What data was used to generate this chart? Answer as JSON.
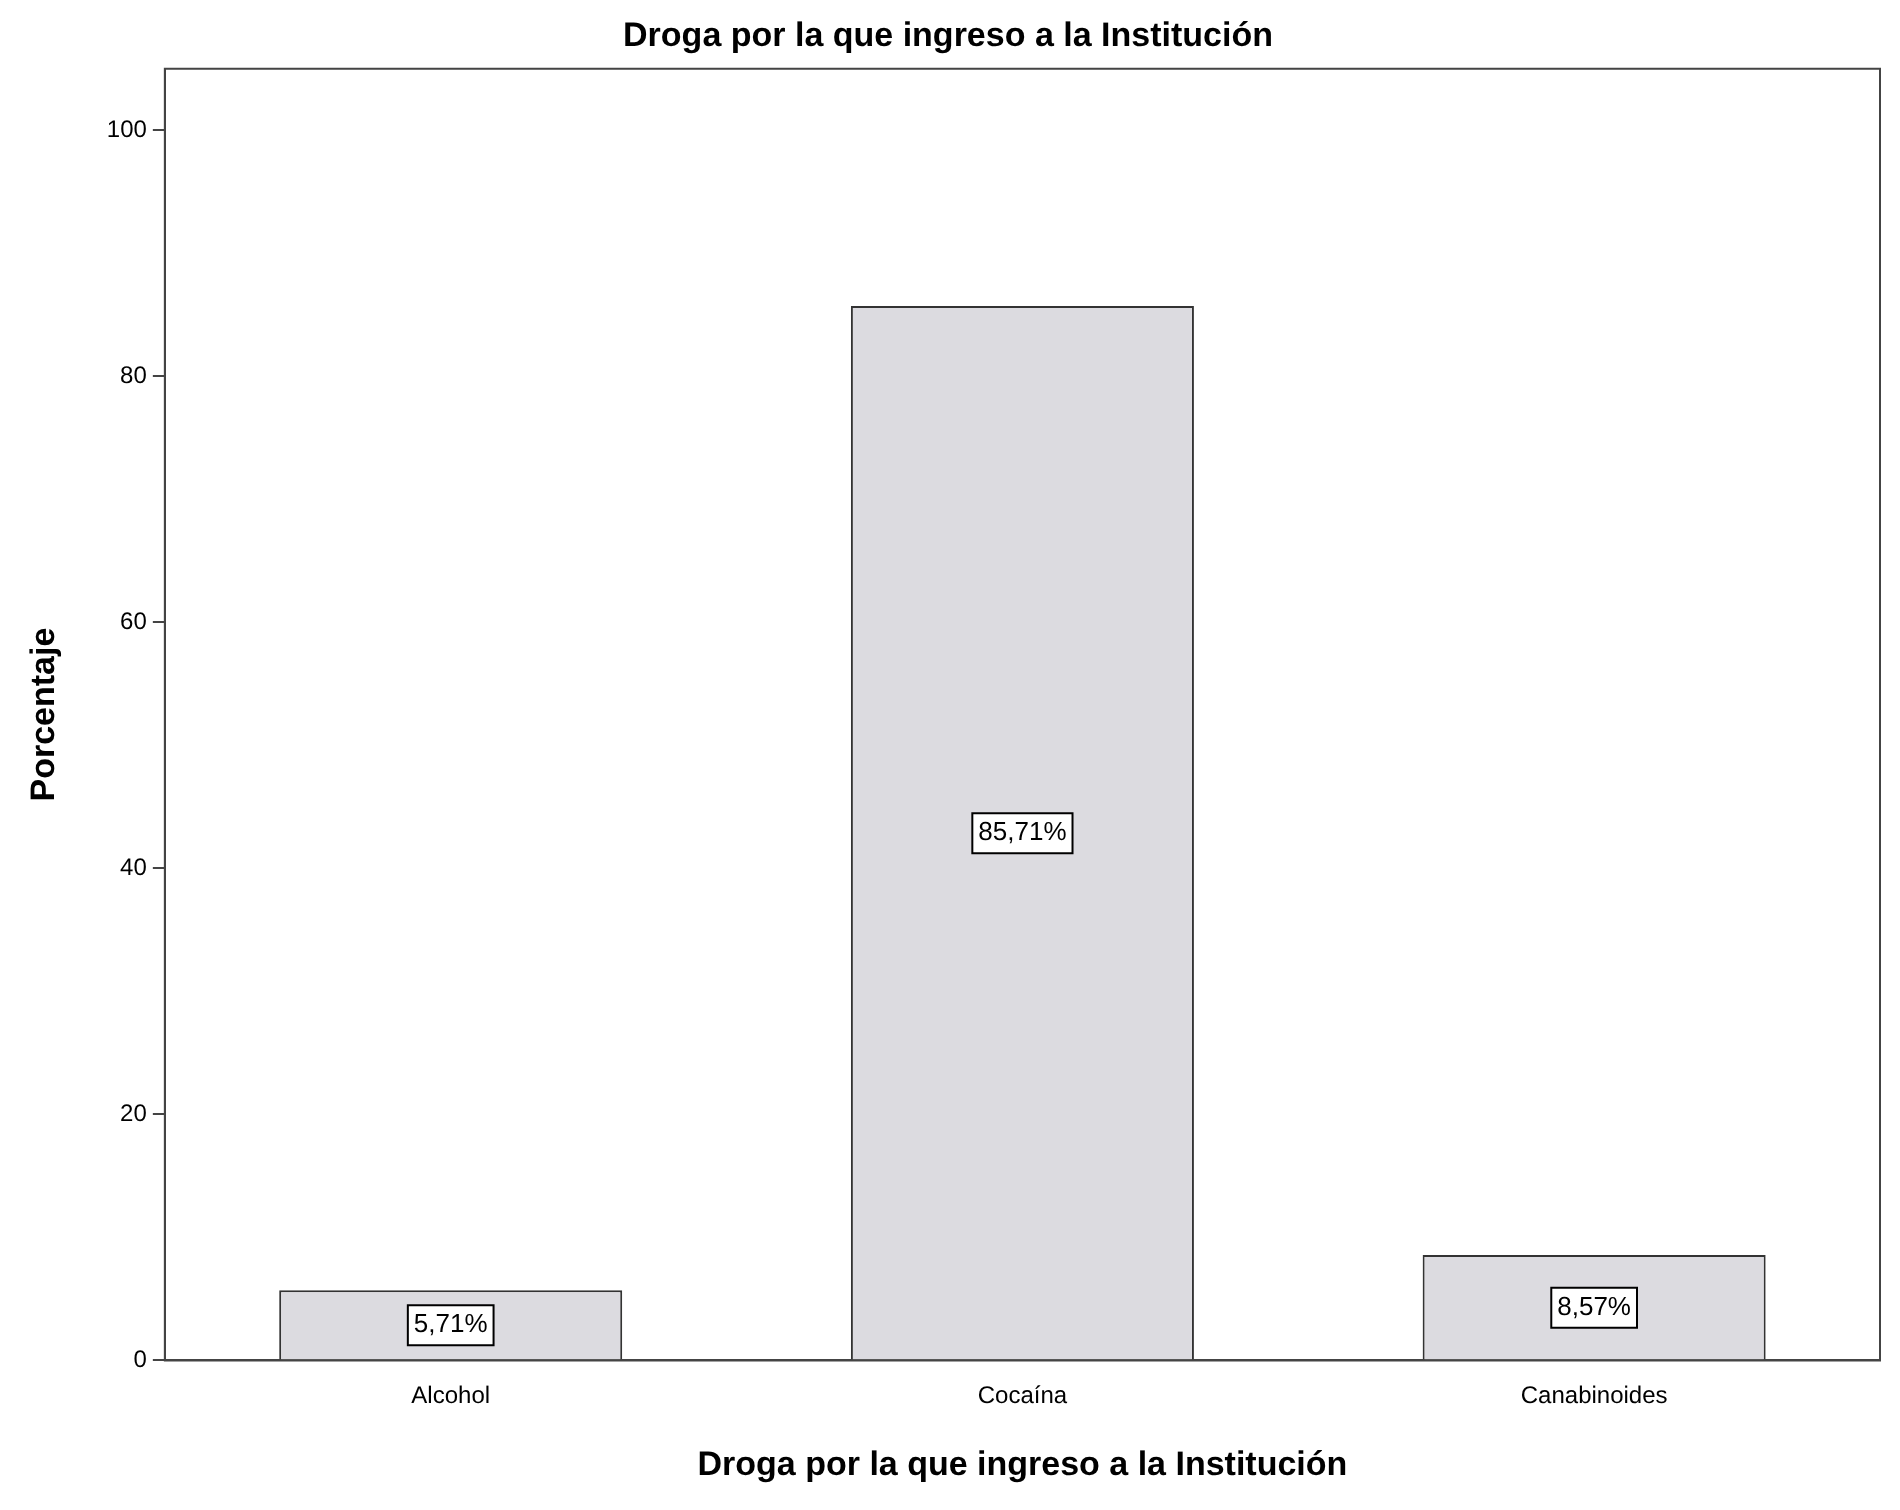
{
  "chart_data": {
    "type": "bar",
    "title": "Droga por la que ingreso a la Institución",
    "xlabel": "Droga por la que ingreso a la Institución",
    "ylabel": "Porcentaje",
    "categories": [
      "Alcohol",
      "Cocaína",
      "Canabinoides"
    ],
    "values": [
      5.71,
      85.71,
      8.57
    ],
    "value_labels": [
      "5,71%",
      "85,71%",
      "8,57%"
    ],
    "color": "#dcdbe0",
    "ylim": [
      0,
      105
    ],
    "yticks": [
      0,
      20,
      40,
      60,
      80,
      100
    ],
    "grid": false
  }
}
